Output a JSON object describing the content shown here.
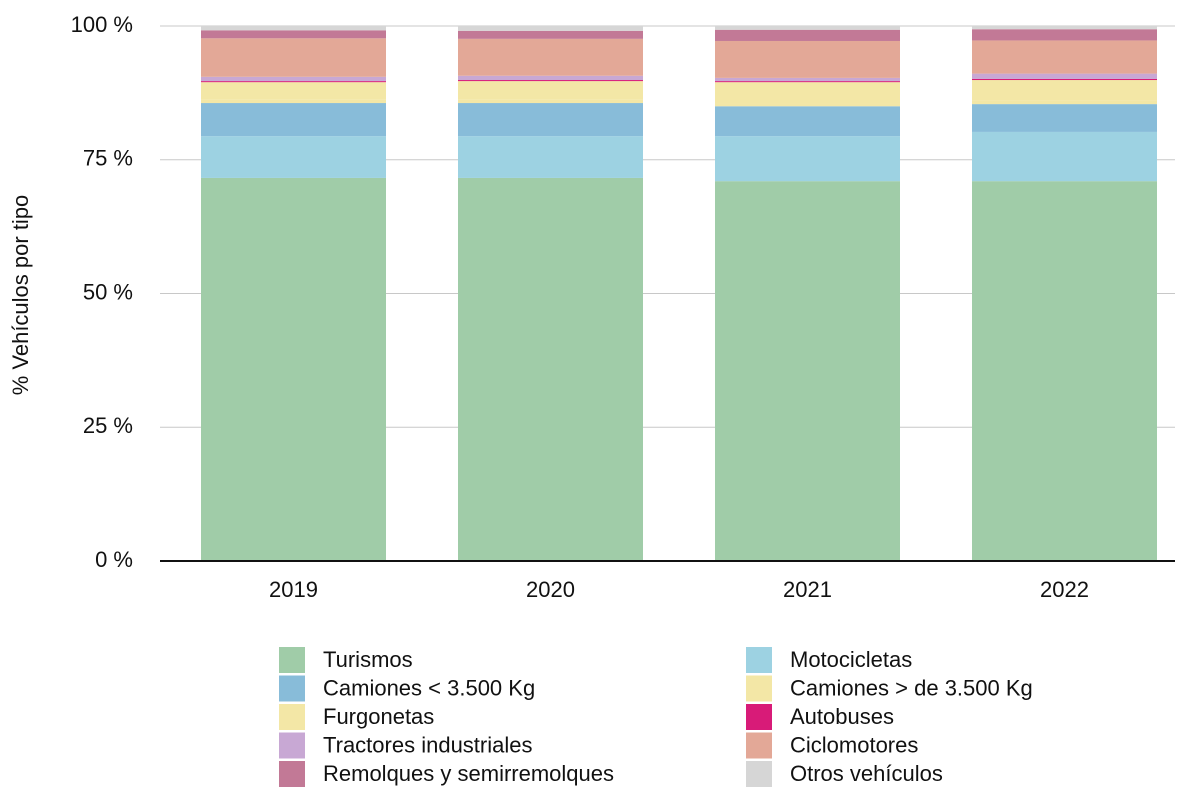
{
  "chart_data": {
    "type": "stacked_bar",
    "y_label": "% Vehículos por tipo",
    "categories": [
      "2019",
      "2020",
      "2021",
      "2022"
    ],
    "series": [
      {
        "name": "Turismos",
        "color": "#a0cca8",
        "values": [
          71.6,
          71.6,
          71.0,
          71.0
        ]
      },
      {
        "name": "Motocicletas",
        "color": "#9dd2e2",
        "values": [
          7.8,
          7.8,
          8.4,
          9.2
        ]
      },
      {
        "name": "Camiones < 3.500 Kg",
        "color": "#88bcd9",
        "values": [
          6.2,
          6.2,
          5.6,
          5.2
        ]
      },
      {
        "name": "Camiones > de 3.500 Kg",
        "color": "#f3e7a6",
        "values": [
          0.6,
          0.6,
          0.6,
          0.6
        ]
      },
      {
        "name": "Furgonetas",
        "color": "#f3e7a6",
        "values": [
          3.3,
          3.5,
          3.9,
          3.9
        ]
      },
      {
        "name": "Autobuses",
        "color": "#d81b78",
        "values": [
          0.2,
          0.2,
          0.2,
          0.2
        ]
      },
      {
        "name": "Tractores industriales",
        "color": "#c8a8d4",
        "values": [
          0.8,
          0.8,
          0.6,
          1.0
        ]
      },
      {
        "name": "Ciclomotores",
        "color": "#e3a897",
        "values": [
          7.2,
          6.9,
          6.9,
          6.2
        ]
      },
      {
        "name": "Remolques y semirremolques",
        "color": "#c27996",
        "values": [
          1.5,
          1.5,
          2.1,
          2.1
        ]
      },
      {
        "name": "Otros vehículos",
        "color": "#d6d6d6",
        "values": [
          0.8,
          0.9,
          0.7,
          0.6
        ]
      }
    ],
    "ylim": [
      0,
      100
    ],
    "yticks": [
      {
        "value": 0,
        "label": "0 %"
      },
      {
        "value": 25,
        "label": "25 %"
      },
      {
        "value": 50,
        "label": "50 %"
      },
      {
        "value": 75,
        "label": "75 %"
      },
      {
        "value": 100,
        "label": "100 %"
      }
    ],
    "grid": true
  }
}
